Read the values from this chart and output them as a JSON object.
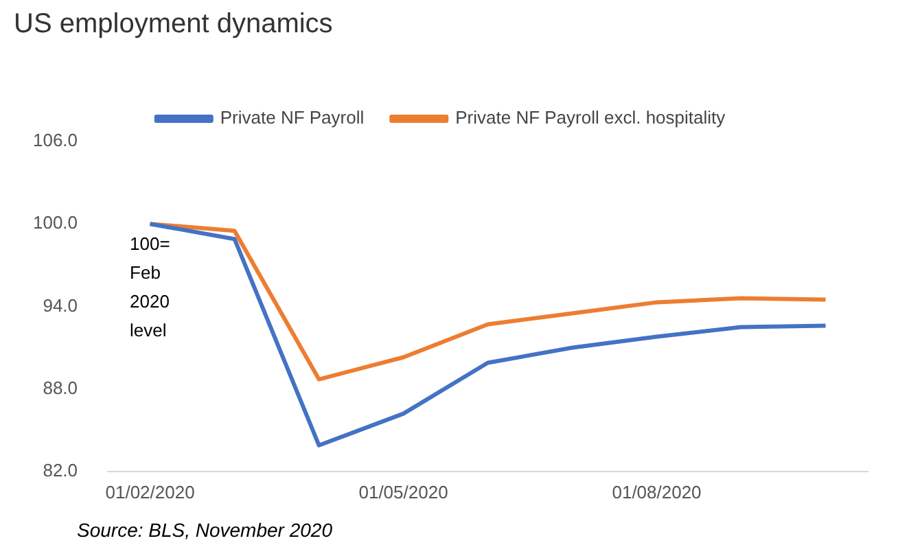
{
  "chart_data": {
    "type": "line",
    "title": "US employment dynamics",
    "categories": [
      "01/02/2020",
      null,
      null,
      "01/05/2020",
      null,
      null,
      "01/08/2020",
      null,
      null
    ],
    "series": [
      {
        "name": "Private NF Payroll",
        "color": "#4472c4",
        "values": [
          100,
          98.9,
          83.9,
          86.2,
          89.9,
          91.0,
          91.8,
          92.5,
          92.6
        ]
      },
      {
        "name": "Private NF Payroll excl. hospitality",
        "color": "#ed7d31",
        "values": [
          100,
          99.5,
          88.7,
          90.3,
          92.7,
          93.5,
          94.3,
          94.6,
          94.5
        ]
      }
    ],
    "ylim": [
      82,
      106
    ],
    "yticks": [
      {
        "value": 82,
        "label": "82.0"
      },
      {
        "value": 88,
        "label": "88.0"
      },
      {
        "value": 94,
        "label": "94.0"
      },
      {
        "value": 100,
        "label": "100.0"
      },
      {
        "value": 106,
        "label": "106.0"
      }
    ],
    "grid": false,
    "legend": "top",
    "marker": "none",
    "line_style": "solid",
    "annotations": [
      "100=\nFeb\n2020\nlevel",
      "Source: BLS, November 2020"
    ]
  }
}
